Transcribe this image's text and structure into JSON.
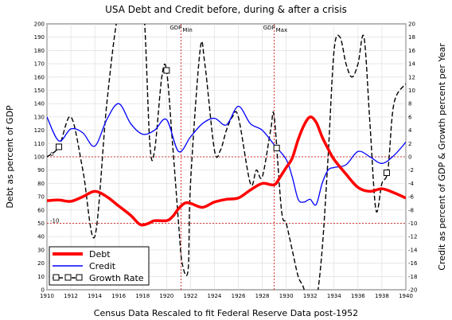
{
  "chart_data": {
    "type": "line",
    "title": "USA Debt and Credit before, during & after a crisis",
    "xlabel": "Census Data Rescaled to fit Federal Reserve Data post-1952",
    "ylabel_left": "Debt as percent of GDP",
    "ylabel_right": "Credit as percent of GDP & Growth percent per Year",
    "xlim": [
      1910,
      1940
    ],
    "ylim_left": [
      0,
      200
    ],
    "ylim_right": [
      -20,
      20
    ],
    "x_ticks": [
      "1910",
      "1912",
      "1914",
      "1916",
      "1918",
      "1920",
      "1922",
      "1924",
      "1926",
      "1928",
      "1930",
      "1932",
      "1934",
      "1936",
      "1938",
      "1940"
    ],
    "left_ticks": [
      "0",
      "10",
      "20",
      "30",
      "40",
      "50",
      "60",
      "70",
      "80",
      "90",
      "100",
      "110",
      "120",
      "130",
      "140",
      "150",
      "160",
      "170",
      "180",
      "190",
      "200"
    ],
    "right_ticks": [
      "-20",
      "-18",
      "-16",
      "-14",
      "-12",
      "-10",
      "-8",
      "-6",
      "-4",
      "-2",
      "0",
      "2",
      "4",
      "6",
      "8",
      "10",
      "12",
      "14",
      "16",
      "18",
      "20"
    ],
    "annotations": [
      {
        "text": "GDP",
        "sub": "Min",
        "x": 1921.2
      },
      {
        "text": "GDP",
        "sub": "Max",
        "x": 1929.0
      }
    ],
    "ref_lines": [
      {
        "label": "0",
        "y": 100
      },
      {
        "label": "-10",
        "y": 50
      }
    ],
    "legend_position": "bottom-left",
    "series": [
      {
        "name": "Debt",
        "color": "#ff0000",
        "x": [
          1910,
          1911,
          1912,
          1913,
          1914,
          1915,
          1916,
          1917,
          1917.8,
          1918.5,
          1919,
          1920,
          1920.5,
          1921,
          1921.5,
          1922,
          1923,
          1924,
          1925,
          1926,
          1927,
          1928,
          1929,
          1929.5,
          1930,
          1930.5,
          1931,
          1931.5,
          1932,
          1932.5,
          1933,
          1933.5,
          1934,
          1935,
          1936,
          1937,
          1938,
          1939,
          1940
        ],
        "values": [
          67,
          67.5,
          66.5,
          70,
          74,
          70,
          63,
          56,
          49,
          50,
          52,
          52,
          55,
          61,
          65,
          65,
          62,
          66,
          68,
          69,
          75,
          80,
          79,
          85,
          92,
          99,
          113,
          124,
          130,
          126,
          115,
          106,
          98,
          87,
          77,
          74,
          76,
          73,
          69
        ]
      },
      {
        "name": "Credit",
        "color": "#0000ff",
        "x": [
          1910,
          1911,
          1912,
          1913,
          1914,
          1915,
          1916,
          1917,
          1918,
          1919,
          1920,
          1921,
          1922,
          1923,
          1924,
          1925,
          1926,
          1927,
          1928,
          1929,
          1930,
          1930.5,
          1931,
          1931.5,
          1932,
          1932.5,
          1933,
          1933.5,
          1934,
          1935,
          1936,
          1937,
          1938,
          1939,
          1940
        ],
        "values": [
          130,
          112,
          121,
          118,
          108,
          128,
          140,
          125,
          117,
          120,
          128,
          104,
          115,
          125,
          129,
          124,
          138,
          125,
          120,
          109,
          98,
          85,
          68,
          66,
          68,
          64,
          80,
          90,
          92,
          94,
          104,
          100,
          95,
          101,
          111
        ]
      },
      {
        "name": "Growth Rate",
        "color": "#000000",
        "marker_x": [
          1911,
          1920,
          1929.2,
          1938.4
        ],
        "x": [
          1910,
          1911,
          1912,
          1913,
          1914,
          1915,
          1916,
          1917,
          1918,
          1918.6,
          1919,
          1919.6,
          1920,
          1920.5,
          1921,
          1921.3,
          1921.8,
          1922,
          1922.8,
          1923.2,
          1924,
          1924.5,
          1925,
          1925.5,
          1926,
          1927,
          1927.5,
          1928,
          1928.7,
          1929,
          1929.6,
          1930,
          1930.5,
          1931,
          1931.5,
          1932,
          1932.5,
          1933,
          1933.5,
          1934,
          1934.5,
          1935,
          1935.5,
          1936,
          1936.5,
          1937,
          1937.5,
          1938,
          1938.5,
          1939,
          1940
        ],
        "values": [
          0,
          1.5,
          6,
          -2,
          -12,
          8,
          22,
          24,
          24,
          2,
          1,
          12,
          13,
          2,
          -10,
          -16,
          -17,
          -4,
          16,
          14,
          1,
          1,
          4,
          6,
          6,
          -4,
          -2,
          -3,
          4,
          6,
          -8,
          -10,
          -14,
          -18,
          -20,
          -25,
          -22,
          -14,
          0,
          16,
          18,
          14,
          12,
          14,
          18,
          5,
          -8,
          -4,
          -2,
          8,
          11
        ]
      }
    ]
  }
}
